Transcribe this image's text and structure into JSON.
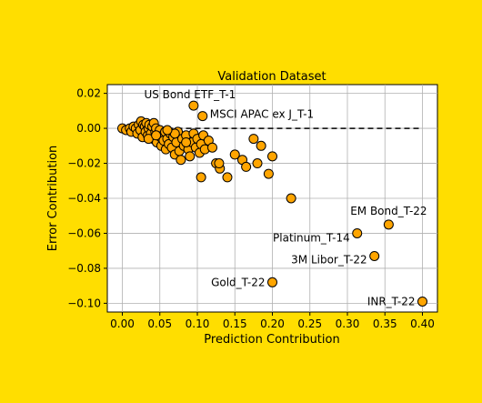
{
  "chart_data": {
    "type": "scatter",
    "title": "Validation Dataset",
    "xlabel": "Prediction Contribution",
    "ylabel": "Error Contribution",
    "xlim": [
      -0.02,
      0.42
    ],
    "ylim": [
      -0.105,
      0.025
    ],
    "xticks": [
      0.0,
      0.05,
      0.1,
      0.15,
      0.2,
      0.25,
      0.3,
      0.35,
      0.4
    ],
    "xtick_labels": [
      "0.00",
      "0.05",
      "0.10",
      "0.15",
      "0.20",
      "0.25",
      "0.30",
      "0.35",
      "0.40"
    ],
    "yticks": [
      0.02,
      0.0,
      -0.02,
      -0.04,
      -0.06,
      -0.08,
      -0.1
    ],
    "ytick_labels": [
      "0.02",
      "0.00",
      "−0.02",
      "−0.04",
      "−0.06",
      "−0.08",
      "−0.10"
    ],
    "grid": true,
    "reference_line": {
      "y": 0.0,
      "x_from": 0.0,
      "x_to": 0.4,
      "style": "dashed"
    },
    "marker_color": "#ffa500",
    "marker_edge": "#000000",
    "points": [
      {
        "x": 0.0,
        "y": 0.0
      },
      {
        "x": 0.005,
        "y": -0.001
      },
      {
        "x": 0.01,
        "y": 0.0
      },
      {
        "x": 0.012,
        "y": -0.002
      },
      {
        "x": 0.015,
        "y": 0.001
      },
      {
        "x": 0.018,
        "y": 0.0
      },
      {
        "x": 0.02,
        "y": -0.003
      },
      {
        "x": 0.022,
        "y": 0.002
      },
      {
        "x": 0.024,
        "y": -0.001
      },
      {
        "x": 0.025,
        "y": 0.004
      },
      {
        "x": 0.027,
        "y": -0.005
      },
      {
        "x": 0.028,
        "y": 0.002
      },
      {
        "x": 0.03,
        "y": 0.001
      },
      {
        "x": 0.031,
        "y": -0.002
      },
      {
        "x": 0.032,
        "y": 0.003
      },
      {
        "x": 0.034,
        "y": -0.004
      },
      {
        "x": 0.035,
        "y": 0.0
      },
      {
        "x": 0.036,
        "y": 0.002
      },
      {
        "x": 0.038,
        "y": -0.003
      },
      {
        "x": 0.04,
        "y": 0.001
      },
      {
        "x": 0.041,
        "y": -0.006
      },
      {
        "x": 0.042,
        "y": 0.003
      },
      {
        "x": 0.044,
        "y": -0.002
      },
      {
        "x": 0.045,
        "y": 0.0
      },
      {
        "x": 0.046,
        "y": -0.008
      },
      {
        "x": 0.048,
        "y": -0.003
      },
      {
        "x": 0.05,
        "y": -0.001
      },
      {
        "x": 0.051,
        "y": -0.005
      },
      {
        "x": 0.052,
        "y": -0.01
      },
      {
        "x": 0.054,
        "y": -0.004
      },
      {
        "x": 0.055,
        "y": -0.007
      },
      {
        "x": 0.057,
        "y": -0.002
      },
      {
        "x": 0.058,
        "y": -0.012
      },
      {
        "x": 0.06,
        "y": -0.006
      },
      {
        "x": 0.062,
        "y": -0.009
      },
      {
        "x": 0.064,
        "y": -0.003
      },
      {
        "x": 0.066,
        "y": -0.011
      },
      {
        "x": 0.068,
        "y": -0.005
      },
      {
        "x": 0.07,
        "y": -0.015
      },
      {
        "x": 0.072,
        "y": -0.008
      },
      {
        "x": 0.074,
        "y": -0.002
      },
      {
        "x": 0.076,
        "y": -0.013
      },
      {
        "x": 0.078,
        "y": -0.018
      },
      {
        "x": 0.08,
        "y": -0.006
      },
      {
        "x": 0.082,
        "y": -0.01
      },
      {
        "x": 0.085,
        "y": -0.004
      },
      {
        "x": 0.088,
        "y": -0.012
      },
      {
        "x": 0.09,
        "y": -0.016
      },
      {
        "x": 0.093,
        "y": -0.008
      },
      {
        "x": 0.095,
        "y": -0.003
      },
      {
        "x": 0.098,
        "y": -0.011
      },
      {
        "x": 0.1,
        "y": -0.006
      },
      {
        "x": 0.103,
        "y": -0.014
      },
      {
        "x": 0.105,
        "y": -0.009
      },
      {
        "x": 0.108,
        "y": -0.004
      },
      {
        "x": 0.11,
        "y": -0.012
      },
      {
        "x": 0.115,
        "y": -0.007
      },
      {
        "x": 0.12,
        "y": -0.011
      },
      {
        "x": 0.125,
        "y": -0.02
      },
      {
        "x": 0.13,
        "y": -0.023
      },
      {
        "x": 0.14,
        "y": -0.028
      },
      {
        "x": 0.15,
        "y": -0.015
      },
      {
        "x": 0.16,
        "y": -0.018
      },
      {
        "x": 0.165,
        "y": -0.022
      },
      {
        "x": 0.175,
        "y": -0.006
      },
      {
        "x": 0.18,
        "y": -0.02
      },
      {
        "x": 0.185,
        "y": -0.01
      },
      {
        "x": 0.195,
        "y": -0.026
      },
      {
        "x": 0.2,
        "y": -0.016
      },
      {
        "x": 0.07,
        "y": -0.003
      },
      {
        "x": 0.035,
        "y": -0.006
      },
      {
        "x": 0.045,
        "y": -0.004
      },
      {
        "x": 0.06,
        "y": -0.001
      },
      {
        "x": 0.085,
        "y": -0.008
      },
      {
        "x": 0.105,
        "y": -0.028
      },
      {
        "x": 0.129,
        "y": -0.02
      },
      {
        "x": 0.095,
        "y": 0.013,
        "label": "US Bond ETF_T-1"
      },
      {
        "x": 0.107,
        "y": 0.007,
        "label": "MSCI APAC ex J_T-1"
      },
      {
        "x": 0.225,
        "y": -0.04
      },
      {
        "x": 0.355,
        "y": -0.055,
        "label": "EM Bond_T-22"
      },
      {
        "x": 0.313,
        "y": -0.06,
        "label": "Platinum_T-14"
      },
      {
        "x": 0.336,
        "y": -0.073,
        "label": "3M Libor_T-22"
      },
      {
        "x": 0.2,
        "y": -0.088,
        "label": "Gold_T-22"
      },
      {
        "x": 0.4,
        "y": -0.099,
        "label": "INR_T-22"
      }
    ]
  }
}
